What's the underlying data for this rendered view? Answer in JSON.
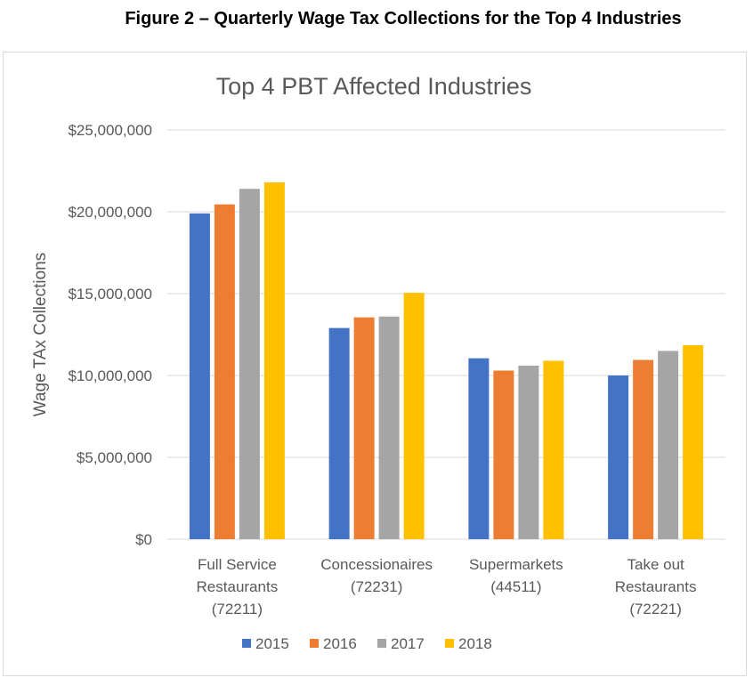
{
  "figure_caption": "Figure 2 – Quarterly Wage Tax Collections for the Top 4 Industries",
  "chart_data": {
    "type": "bar",
    "title": "Top 4 PBT Affected Industries",
    "xlabel": "",
    "ylabel": "Wage TAx Collections",
    "ylim": [
      0,
      25000000
    ],
    "y_ticks": [
      0,
      5000000,
      10000000,
      15000000,
      20000000,
      25000000
    ],
    "y_tick_labels": [
      "$0",
      "$5,000,000",
      "$10,000,000",
      "$15,000,000",
      "$20,000,000",
      "$25,000,000"
    ],
    "grid": true,
    "legend_position": "bottom",
    "categories": [
      [
        "Full Service",
        "Restaurants",
        "(72211)"
      ],
      [
        "Concessionaires",
        "(72231)"
      ],
      [
        "Supermarkets",
        "(44511)"
      ],
      [
        "Take out",
        "Restaurants",
        "(72221)"
      ]
    ],
    "series": [
      {
        "name": "2015",
        "color": "#4472c4",
        "values": [
          19900000,
          12900000,
          11050000,
          10000000
        ]
      },
      {
        "name": "2016",
        "color": "#ed7d31",
        "values": [
          20450000,
          13550000,
          10300000,
          10950000
        ]
      },
      {
        "name": "2017",
        "color": "#a5a5a5",
        "values": [
          21400000,
          13600000,
          10600000,
          11500000
        ]
      },
      {
        "name": "2018",
        "color": "#ffc000",
        "values": [
          21800000,
          15050000,
          10900000,
          11850000
        ]
      }
    ]
  }
}
